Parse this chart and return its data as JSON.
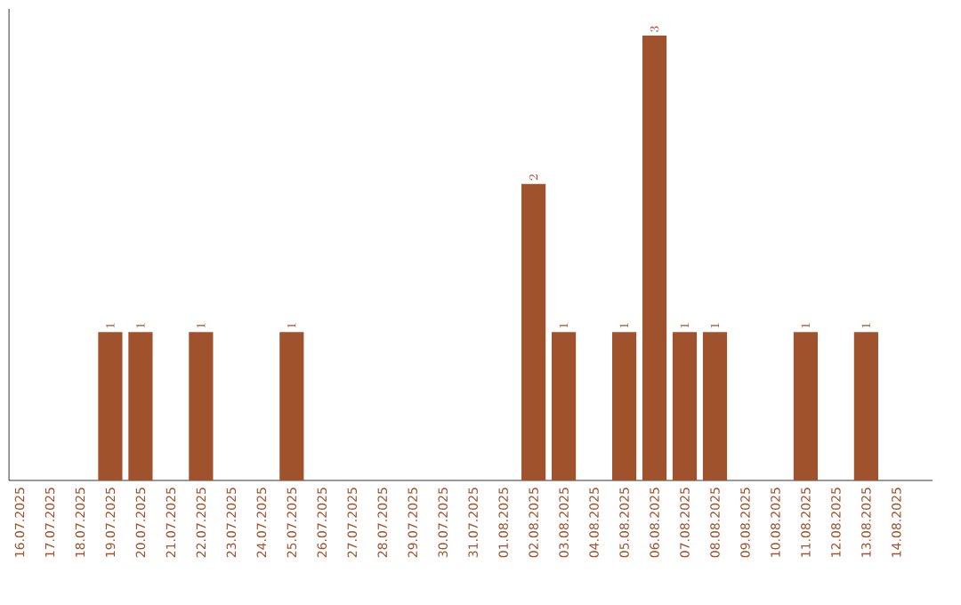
{
  "chart_data": {
    "type": "bar",
    "categories": [
      "16.07.2025",
      "17.07.2025",
      "18.07.2025",
      "19.07.2025",
      "20.07.2025",
      "21.07.2025",
      "22.07.2025",
      "23.07.2025",
      "24.07.2025",
      "25.07.2025",
      "26.07.2025",
      "27.07.2025",
      "28.07.2025",
      "29.07.2025",
      "30.07.2025",
      "31.07.2025",
      "01.08.2025",
      "02.08.2025",
      "03.08.2025",
      "04.08.2025",
      "05.08.2025",
      "06.08.2025",
      "07.08.2025",
      "08.08.2025",
      "09.08.2025",
      "10.08.2025",
      "11.08.2025",
      "12.08.2025",
      "13.08.2025",
      "14.08.2025"
    ],
    "values": [
      null,
      null,
      null,
      1,
      1,
      null,
      1,
      null,
      null,
      1,
      null,
      null,
      null,
      null,
      null,
      null,
      null,
      2,
      1,
      null,
      1,
      3,
      1,
      1,
      null,
      null,
      1,
      null,
      1,
      null
    ],
    "color": "#a0522d",
    "data_labels": true,
    "tick_labels": "x"
  }
}
